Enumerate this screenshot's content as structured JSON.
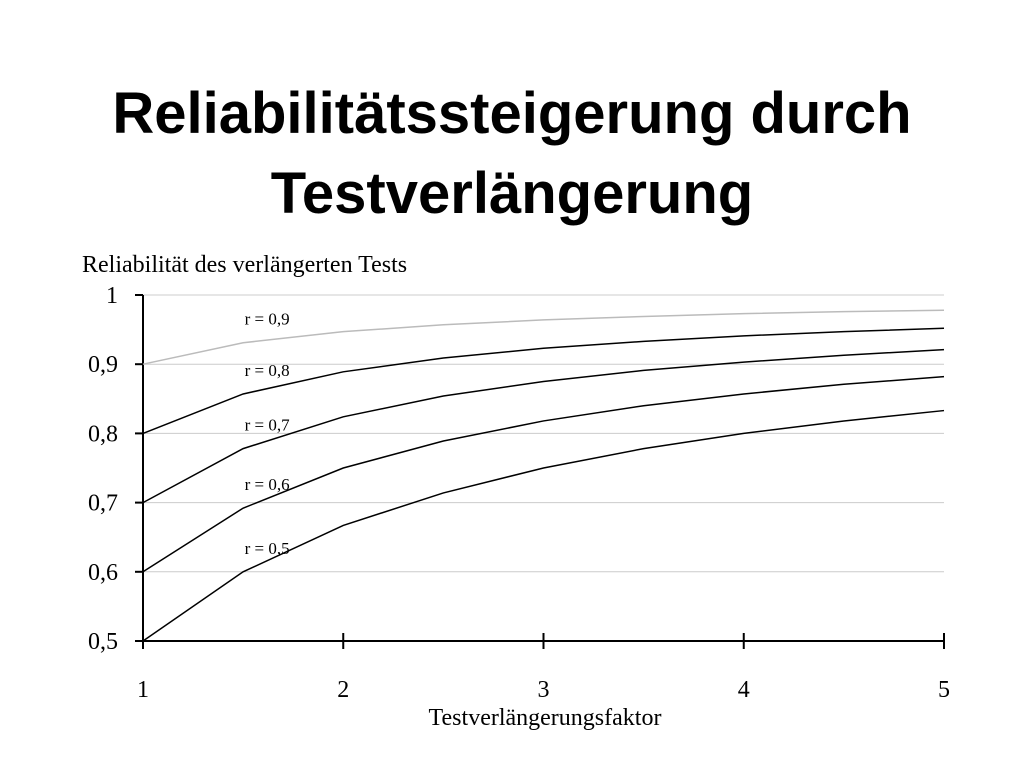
{
  "chart_data": {
    "type": "line",
    "title": [
      "Reliabilitätssteigerung durch",
      "Testverlängerung"
    ],
    "y_label": "Reliabilität des verlängerten Tests",
    "x_label": "Testverlängerungsfaktor",
    "x": [
      1,
      1.5,
      2,
      2.5,
      3,
      3.5,
      4,
      4.5,
      5
    ],
    "series": [
      {
        "name": "r = 0,9",
        "color": "#bbbbbb",
        "values": [
          0.9,
          0.931,
          0.947,
          0.957,
          0.964,
          0.969,
          0.973,
          0.976,
          0.978
        ]
      },
      {
        "name": "r = 0,8",
        "color": "#000000",
        "values": [
          0.8,
          0.857,
          0.889,
          0.909,
          0.923,
          0.933,
          0.941,
          0.947,
          0.952
        ]
      },
      {
        "name": "r = 0,7",
        "color": "#000000",
        "values": [
          0.7,
          0.778,
          0.824,
          0.854,
          0.875,
          0.891,
          0.903,
          0.913,
          0.921
        ]
      },
      {
        "name": "r = 0,6",
        "color": "#000000",
        "values": [
          0.6,
          0.692,
          0.75,
          0.789,
          0.818,
          0.84,
          0.857,
          0.871,
          0.882
        ]
      },
      {
        "name": "r = 0,5",
        "color": "#000000",
        "values": [
          0.5,
          0.6,
          0.667,
          0.714,
          0.75,
          0.778,
          0.8,
          0.818,
          0.833
        ]
      }
    ],
    "xlim": [
      1,
      5
    ],
    "xticks": [
      1,
      2,
      3,
      4,
      5
    ],
    "ylim": [
      0.5,
      1
    ],
    "yticks": [
      {
        "value": 0.5,
        "label": "0,5"
      },
      {
        "value": 0.6,
        "label": "0,6"
      },
      {
        "value": 0.7,
        "label": "0,7"
      },
      {
        "value": 0.8,
        "label": "0,8"
      },
      {
        "value": 0.9,
        "label": "0,9"
      },
      1
    ],
    "grid": true
  }
}
